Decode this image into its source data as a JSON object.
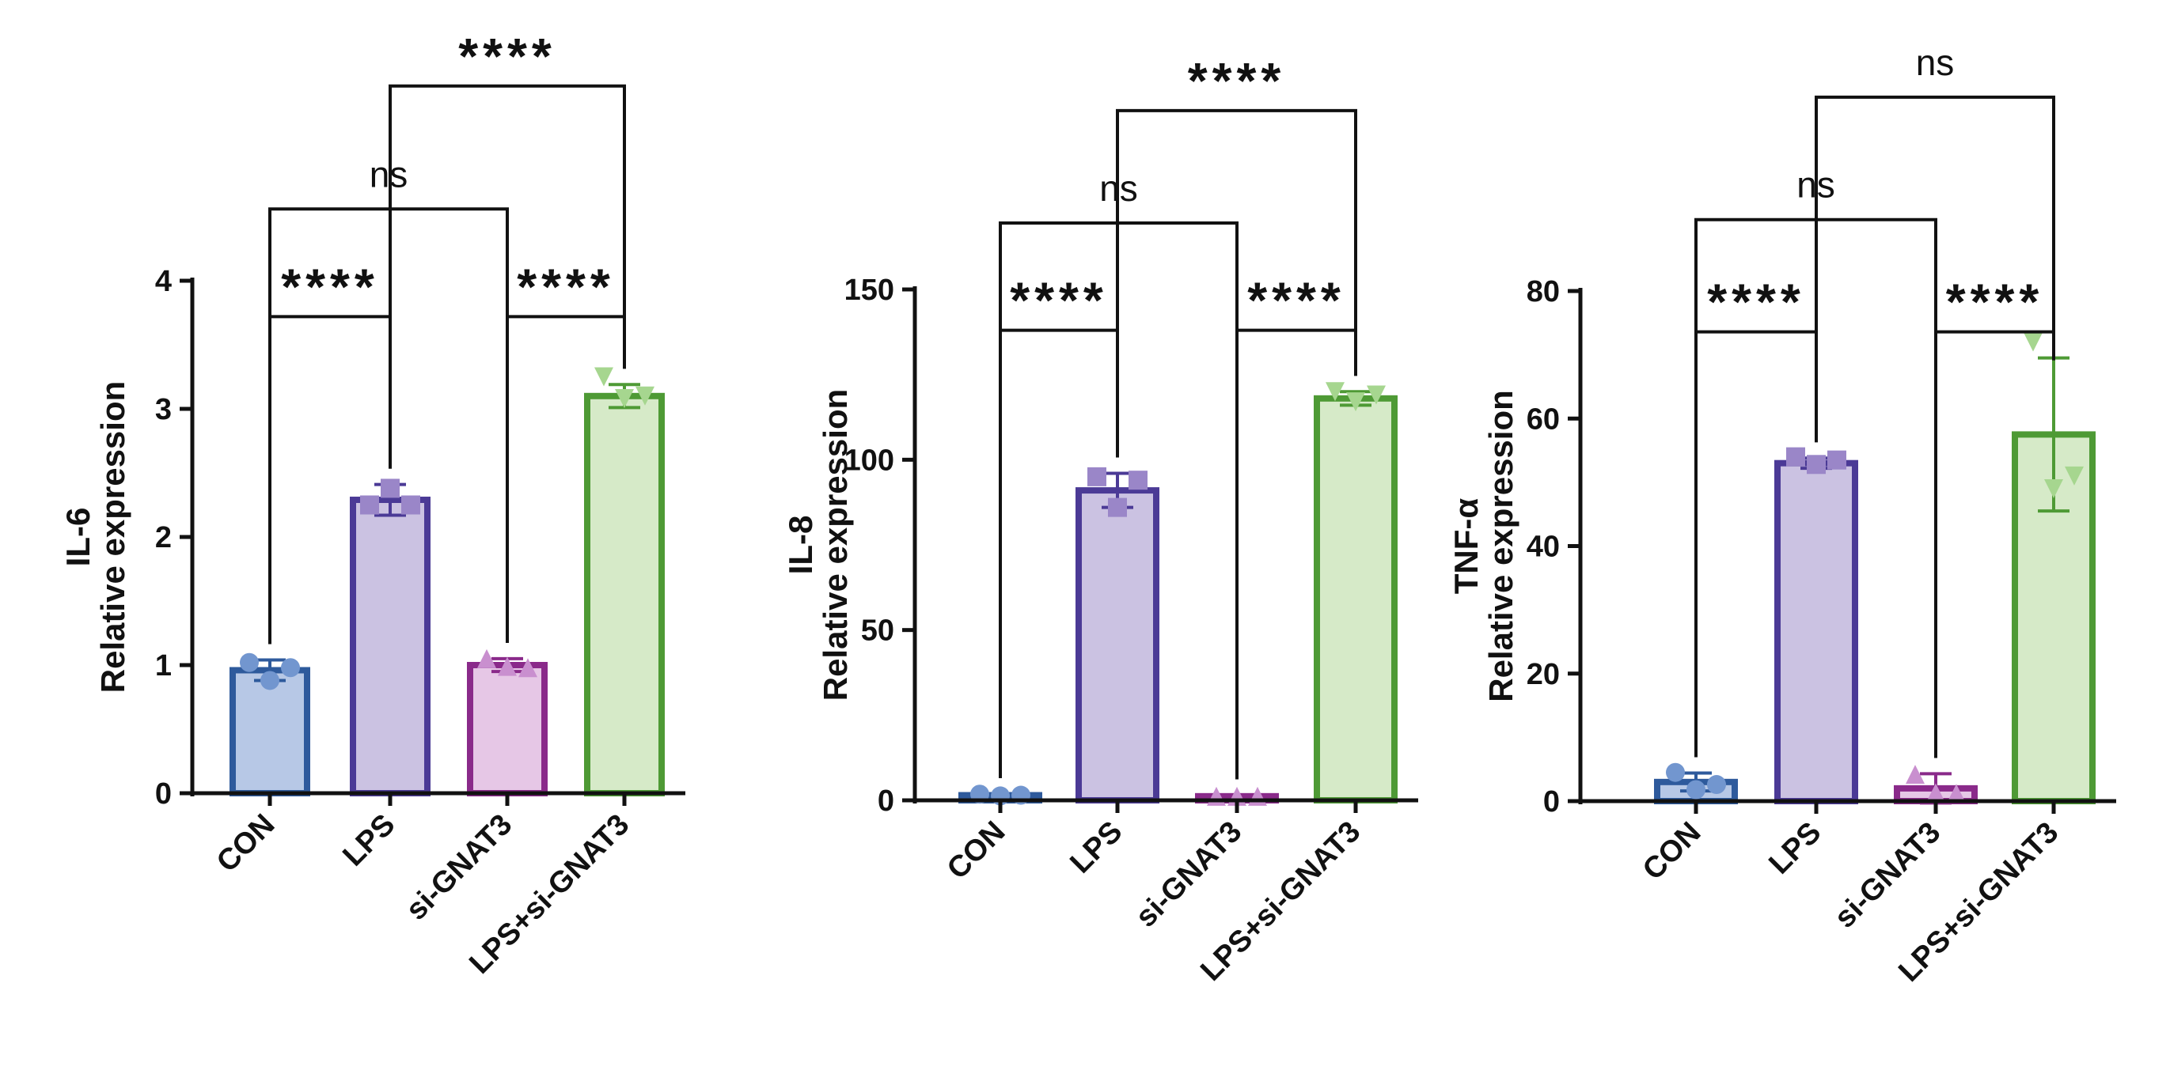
{
  "colors": {
    "CON": {
      "stroke": "#2e5a9c",
      "fill": "#b7c8e6",
      "marker": "#7296cf"
    },
    "LPS": {
      "stroke": "#4b3a96",
      "fill": "#cbc2e2",
      "marker": "#9a86c8"
    },
    "si-GNAT3": {
      "stroke": "#8a2a8a",
      "fill": "#e6c7e6",
      "marker": "#c98fcf"
    },
    "LPS+si-GNAT3": {
      "stroke": "#4e9a35",
      "fill": "#d6eac8",
      "marker": "#a6d68f"
    },
    "axis": "#111111"
  },
  "marker_shapes": [
    "circle",
    "square",
    "triangle-up",
    "triangle-down"
  ],
  "chart_data": [
    {
      "type": "bar",
      "title": "",
      "ylabel_top": "IL-6",
      "ylabel": "Relative expression",
      "categories": [
        "CON",
        "LPS",
        "si-GNAT3",
        "LPS+si-GNAT3"
      ],
      "values": [
        0.96,
        2.29,
        1.0,
        3.1
      ],
      "errors": [
        0.08,
        0.12,
        0.05,
        0.09
      ],
      "points": [
        [
          1.02,
          0.88,
          0.98
        ],
        [
          2.25,
          2.38,
          2.25
        ],
        [
          1.05,
          0.99,
          0.98
        ],
        [
          3.25,
          3.08,
          3.1
        ]
      ],
      "ylim": [
        0,
        4
      ],
      "yticks": [
        0,
        1,
        2,
        3,
        4
      ],
      "ytick_labels": [
        "0",
        "1",
        "2",
        "3",
        "4"
      ],
      "comparisons": [
        {
          "from": "CON",
          "to": "LPS",
          "label": "****",
          "level": 0.93
        },
        {
          "from": "si-GNAT3",
          "to": "LPS+si-GNAT3",
          "label": "****",
          "level": 0.93
        },
        {
          "from": "CON",
          "to": "si-GNAT3",
          "label": "ns",
          "level": 1.14
        },
        {
          "from": "LPS",
          "to": "LPS+si-GNAT3",
          "label": "****",
          "level": 1.38
        }
      ]
    },
    {
      "type": "bar",
      "title": "",
      "ylabel_top": "IL-8",
      "ylabel": "Relative expression",
      "categories": [
        "CON",
        "LPS",
        "si-GNAT3",
        "LPS+si-GNAT3"
      ],
      "values": [
        1.5,
        91,
        1.2,
        118
      ],
      "errors": [
        0.4,
        5,
        0.3,
        2
      ],
      "points": [
        [
          1.8,
          1.3,
          1.5
        ],
        [
          95,
          86,
          94
        ],
        [
          1.2,
          1.2,
          1.2
        ],
        [
          120,
          117,
          119
        ]
      ],
      "ylim": [
        0,
        150
      ],
      "yticks": [
        0,
        50,
        100,
        150
      ],
      "ytick_labels": [
        "0",
        "50",
        "100",
        "150"
      ],
      "comparisons": [
        {
          "from": "CON",
          "to": "LPS",
          "label": "****",
          "level": 0.92
        },
        {
          "from": "si-GNAT3",
          "to": "LPS+si-GNAT3",
          "label": "****",
          "level": 0.92
        },
        {
          "from": "CON",
          "to": "si-GNAT3",
          "label": "ns",
          "level": 1.13
        },
        {
          "from": "LPS",
          "to": "LPS+si-GNAT3",
          "label": "****",
          "level": 1.35
        }
      ]
    },
    {
      "type": "bar",
      "title": "",
      "ylabel_top": "TNF-α",
      "ylabel": "Relative expression",
      "categories": [
        "CON",
        "LPS",
        "si-GNAT3",
        "LPS+si-GNAT3"
      ],
      "values": [
        3,
        53,
        2,
        57.5
      ],
      "errors": [
        1.4,
        0.8,
        2.3,
        12
      ],
      "points": [
        [
          4.5,
          1.8,
          2.6
        ],
        [
          54,
          52.8,
          53.5
        ],
        [
          4.2,
          1.3,
          1.2
        ],
        [
          72,
          49,
          51
        ]
      ],
      "ylim": [
        0,
        80
      ],
      "yticks": [
        0,
        20,
        40,
        60,
        80
      ],
      "ytick_labels": [
        "0",
        "20",
        "40",
        "60",
        "80"
      ],
      "comparisons": [
        {
          "from": "CON",
          "to": "LPS",
          "label": "****",
          "level": 0.92
        },
        {
          "from": "si-GNAT3",
          "to": "LPS+si-GNAT3",
          "label": "****",
          "level": 0.92
        },
        {
          "from": "CON",
          "to": "si-GNAT3",
          "label": "ns",
          "level": 1.14
        },
        {
          "from": "LPS",
          "to": "LPS+si-GNAT3",
          "label": "ns",
          "level": 1.38
        }
      ]
    }
  ]
}
